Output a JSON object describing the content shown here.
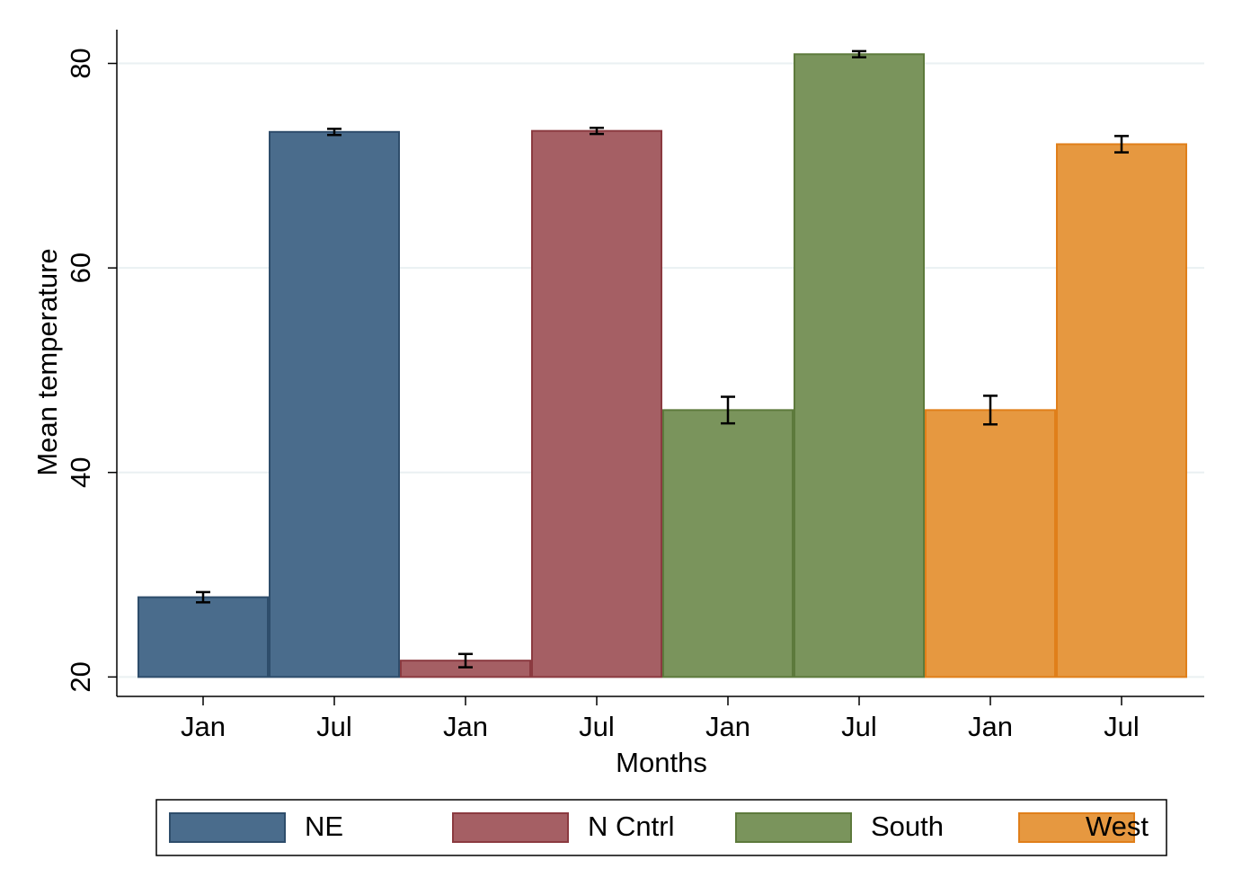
{
  "chart_data": {
    "type": "bar",
    "y_label": "Mean temperature",
    "x_label": "Months",
    "categories": [
      "Jan",
      "Jul",
      "Jan",
      "Jul",
      "Jan",
      "Jul",
      "Jan",
      "Jul"
    ],
    "series": [
      {
        "name": "NE",
        "color": "#4a6c8c",
        "edge": "#2e4d6b",
        "values": [
          27.8,
          73.3,
          null,
          null,
          null,
          null,
          null,
          null
        ],
        "errors": [
          0.5,
          0.3,
          null,
          null,
          null,
          null,
          null,
          null
        ]
      },
      {
        "name": "N Cntrl",
        "color": "#a55f64",
        "edge": "#8b3a40",
        "values": [
          null,
          null,
          21.6,
          73.4,
          null,
          null,
          null,
          null
        ],
        "errors": [
          null,
          null,
          0.65,
          0.3,
          null,
          null,
          null,
          null
        ]
      },
      {
        "name": "South",
        "color": "#7a945c",
        "edge": "#5d7a3c",
        "values": [
          null,
          null,
          null,
          null,
          46.1,
          80.9,
          null,
          null
        ],
        "errors": [
          null,
          null,
          null,
          null,
          1.3,
          0.3,
          null,
          null
        ]
      },
      {
        "name": "West",
        "color": "#e69840",
        "edge": "#e07f1a",
        "values": [
          null,
          null,
          null,
          null,
          null,
          null,
          46.1,
          72.1
        ],
        "errors": [
          null,
          null,
          null,
          null,
          null,
          null,
          1.4,
          0.8
        ]
      }
    ],
    "bar_base": 20,
    "ylim": [
      18.1,
      83.3
    ],
    "yticks": [
      20,
      40,
      60,
      80
    ],
    "grid": true,
    "legend": "bottom"
  }
}
